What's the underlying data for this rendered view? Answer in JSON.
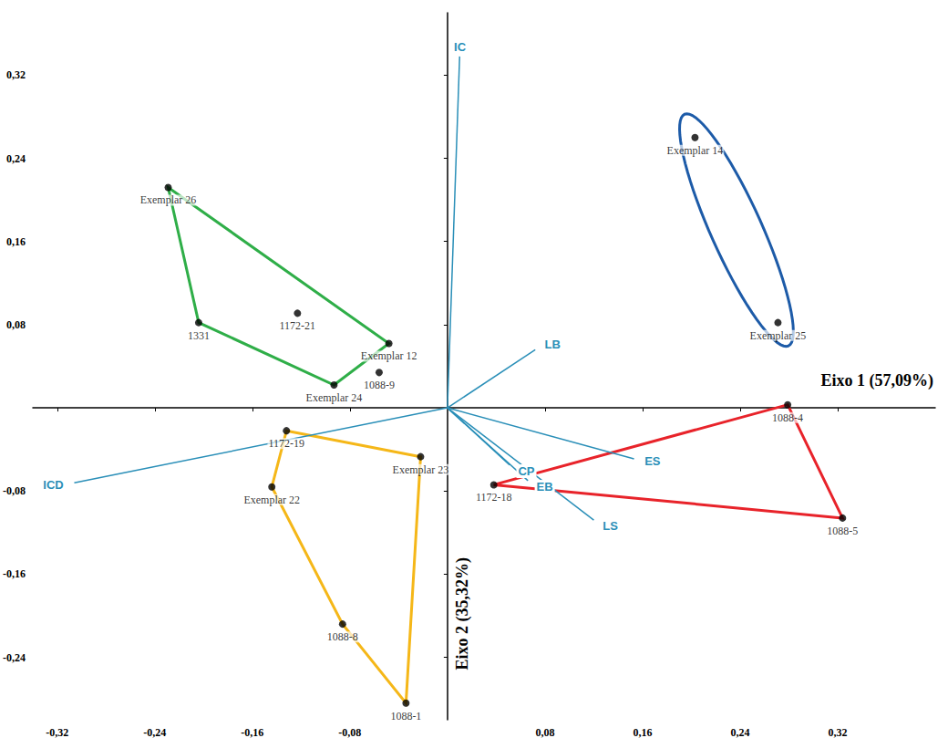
{
  "chart_data": {
    "type": "scatter",
    "x_label": "Eixo 1 (57,09%)",
    "y_label": "Eixo 2 (35,32%)",
    "xlim": [
      -0.34,
      0.4
    ],
    "ylim": [
      -0.3,
      0.38
    ],
    "xticks": [
      {
        "value": -0.32,
        "label": "-0,32"
      },
      {
        "value": -0.24,
        "label": "-0,24"
      },
      {
        "value": -0.16,
        "label": "-0,16"
      },
      {
        "value": -0.08,
        "label": "-0,08"
      },
      {
        "value": 0.08,
        "label": "0,08"
      },
      {
        "value": 0.16,
        "label": "0,16"
      },
      {
        "value": 0.24,
        "label": "0,24"
      },
      {
        "value": 0.32,
        "label": "0,32"
      }
    ],
    "yticks": [
      {
        "value": -0.24,
        "label": "-0,24"
      },
      {
        "value": -0.16,
        "label": "-0,16"
      },
      {
        "value": -0.08,
        "label": "-0,08"
      },
      {
        "value": 0.08,
        "label": "0,08"
      },
      {
        "value": 0.16,
        "label": "0,16"
      },
      {
        "value": 0.24,
        "label": "0,24"
      },
      {
        "value": 0.32,
        "label": "0,32"
      }
    ],
    "grid": false,
    "color": "#000000",
    "marker": "circle",
    "labels": [
      "Exemplar 26",
      "1331",
      "1172-21",
      "Exemplar 12",
      "Exemplar 24",
      "1088-9",
      "1172-19",
      "Exemplar 22",
      "Exemplar 23",
      "1088-8",
      "1088-1",
      "1172-18",
      "1088-4",
      "1088-5",
      "Exemplar 14",
      "Exemplar 25"
    ],
    "x": [
      -0.229,
      -0.204,
      -0.123,
      -0.048,
      -0.093,
      -0.056,
      -0.132,
      -0.144,
      -0.022,
      -0.086,
      -0.034,
      0.038,
      0.279,
      0.324,
      0.203,
      0.271
    ],
    "values": [
      0.212,
      0.082,
      0.091,
      0.062,
      0.022,
      0.034,
      -0.022,
      -0.076,
      -0.047,
      -0.208,
      -0.284,
      -0.074,
      0.003,
      -0.106,
      0.26,
      0.082
    ],
    "groups": [
      {
        "color": "#2fae48",
        "members": [
          "Exemplar 26",
          "1331",
          "1172-21",
          "Exemplar 12",
          "Exemplar 24"
        ]
      },
      {
        "color": "#f5b718",
        "members": [
          "1172-19",
          "Exemplar 22",
          "Exemplar 23",
          "1088-8",
          "1088-1"
        ]
      },
      {
        "color": "#e8232a",
        "members": [
          "1172-18",
          "1088-4",
          "1088-5"
        ]
      },
      {
        "color": "#1d5ba8",
        "members": [
          "Exemplar 14",
          "Exemplar 25"
        ]
      }
    ],
    "loadings": {
      "color": "#2a8fb8",
      "labels": [
        "IC",
        "LB",
        "ES",
        "LS",
        "EB",
        "CP",
        "ICD"
      ],
      "x": [
        0.01,
        0.072,
        0.153,
        0.12,
        0.066,
        0.051,
        -0.306
      ],
      "values": [
        0.338,
        0.056,
        -0.049,
        -0.108,
        -0.07,
        -0.055,
        -0.072
      ]
    }
  }
}
